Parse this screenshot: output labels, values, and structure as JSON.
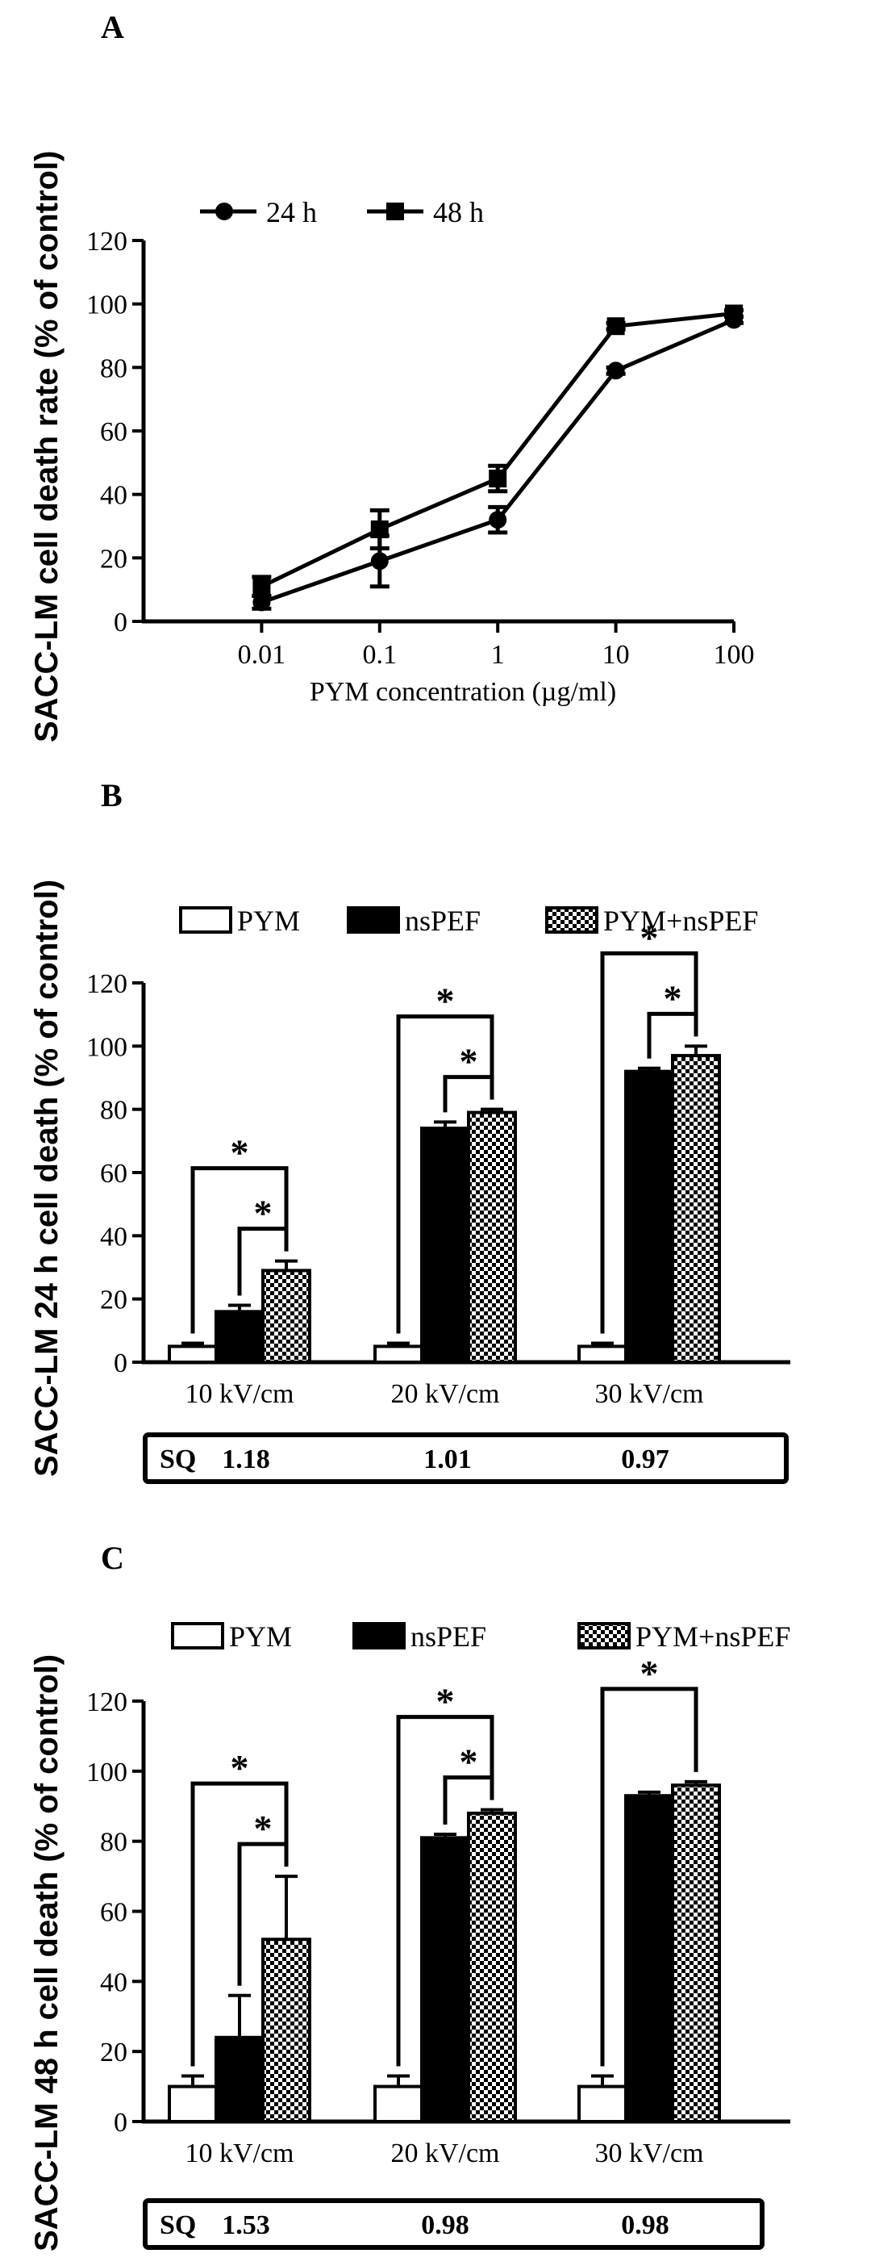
{
  "chart_data": [
    {
      "panel": "A",
      "type": "line",
      "ylabel": "SACC-LM cell death rate (% of control)",
      "xlabel": "PYM concentration (µg/ml)",
      "x": [
        0.01,
        0.1,
        1,
        10,
        100
      ],
      "x_tick_labels": [
        "0.01",
        "0.1",
        "1",
        "10",
        "100"
      ],
      "xscale": "log",
      "ylim": [
        0,
        120
      ],
      "yticks": [
        "0",
        "20",
        "40",
        "60",
        "80",
        "100",
        "120"
      ],
      "legend_position": "top-left",
      "series": [
        {
          "name": "24 h",
          "marker": "circle",
          "values": [
            6,
            19,
            32,
            79,
            95
          ],
          "errors": [
            2,
            8,
            4,
            1,
            1
          ]
        },
        {
          "name": "48 h",
          "marker": "square",
          "values": [
            11,
            29,
            45,
            93,
            97
          ],
          "errors": [
            3,
            6,
            4,
            1,
            1
          ]
        }
      ]
    },
    {
      "panel": "B",
      "type": "bar",
      "ylabel": "SACC-LM 24 h cell death (% of control)",
      "categories": [
        "10 kV/cm",
        "20 kV/cm",
        "30 kV/cm"
      ],
      "ylim": [
        0,
        120
      ],
      "yticks": [
        "0",
        "20",
        "40",
        "60",
        "80",
        "100",
        "120"
      ],
      "legend_position": "top",
      "series": [
        {
          "name": "PYM",
          "pattern": "white",
          "values": [
            5,
            5,
            5
          ],
          "errors": [
            1,
            1,
            1
          ]
        },
        {
          "name": "nsPEF",
          "pattern": "black",
          "values": [
            16,
            74,
            92
          ],
          "errors": [
            2,
            2,
            1
          ]
        },
        {
          "name": "PYM+nsPEF",
          "pattern": "checker",
          "values": [
            29,
            79,
            97
          ],
          "errors": [
            3,
            1,
            3
          ]
        }
      ],
      "significance_marker": "*",
      "sq_label": "SQ",
      "sq_values": [
        "1.18",
        "1.01",
        "0.97"
      ]
    },
    {
      "panel": "C",
      "type": "bar",
      "ylabel": "SACC-LM 48 h cell death (% of control)",
      "categories": [
        "10 kV/cm",
        "20 kV/cm",
        "30 kV/cm"
      ],
      "ylim": [
        0,
        120
      ],
      "yticks": [
        "0",
        "20",
        "40",
        "60",
        "80",
        "100",
        "120"
      ],
      "legend_position": "top",
      "series": [
        {
          "name": "PYM",
          "pattern": "white",
          "values": [
            10,
            10,
            10
          ],
          "errors": [
            3,
            3,
            3
          ]
        },
        {
          "name": "nsPEF",
          "pattern": "black",
          "values": [
            24,
            81,
            93
          ],
          "errors": [
            12,
            1,
            1
          ]
        },
        {
          "name": "PYM+nsPEF",
          "pattern": "checker",
          "values": [
            52,
            88,
            96
          ],
          "errors": [
            18,
            1,
            1
          ]
        }
      ],
      "significance_marker": "*",
      "sq_label": "SQ",
      "sq_values": [
        "1.53",
        "0.98",
        "0.98"
      ]
    }
  ]
}
